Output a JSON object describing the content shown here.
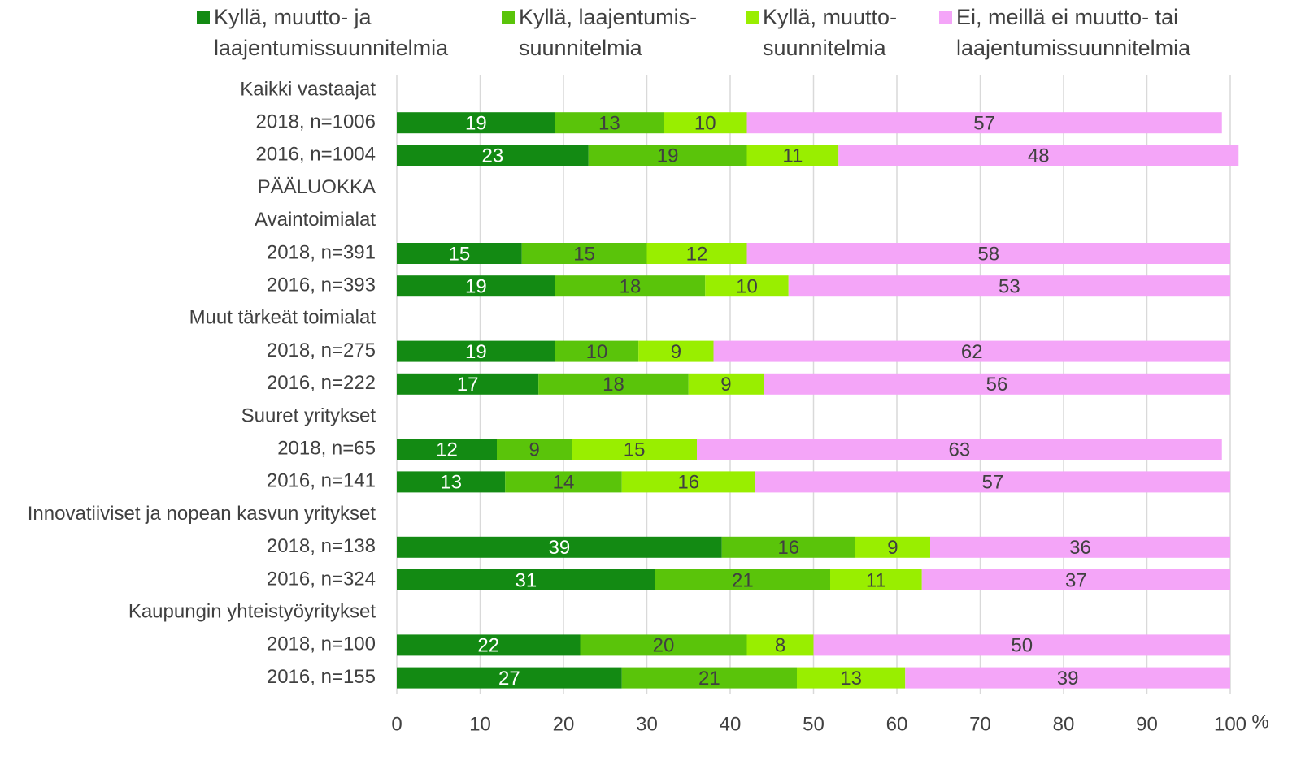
{
  "chart_data": {
    "type": "stacked-barh",
    "categories": [
      "Kaikki vastaajat",
      "2018, n=1006",
      "2016, n=1004",
      "PÄÄLUOKKA",
      "Avaintoimialat",
      "2018, n=391",
      "2016, n=393",
      "Muut tärkeät toimialat",
      "2018, n=275",
      "2016, n=222",
      "Suuret yritykset",
      "2018, n=65",
      "2016, n=141",
      "Innovatiiviset ja nopean kasvun yritykset",
      "2018, n=138",
      "2016, n=324",
      "Kaupungin yhteistyöyritykset",
      "2018, n=100",
      "2016, n=155"
    ],
    "series": [
      {
        "name": "Kyllä, muutto- ja laajentumissuunnitelmia",
        "color": "#138a13",
        "values": [
          null,
          19,
          23,
          null,
          null,
          15,
          19,
          null,
          19,
          17,
          null,
          12,
          13,
          null,
          39,
          31,
          null,
          22,
          27
        ]
      },
      {
        "name": "Kyllä, laajentumis-suunnitelmia",
        "color": "#5ac40a",
        "values": [
          null,
          13,
          19,
          null,
          null,
          15,
          18,
          null,
          10,
          18,
          null,
          9,
          14,
          null,
          16,
          21,
          null,
          20,
          21
        ]
      },
      {
        "name": "Kyllä, muutto-suunnitelmia",
        "color": "#99ee00",
        "values": [
          null,
          10,
          11,
          null,
          null,
          12,
          10,
          null,
          9,
          9,
          null,
          15,
          16,
          null,
          9,
          11,
          null,
          8,
          13
        ]
      },
      {
        "name": "Ei, meillä ei muutto- tai laajentumissuunnitelmia",
        "color": "#f4a5f8",
        "values": [
          null,
          57,
          48,
          null,
          null,
          58,
          53,
          null,
          62,
          56,
          null,
          63,
          57,
          null,
          36,
          37,
          null,
          50,
          39
        ]
      }
    ],
    "xlabel": "%",
    "xlim": [
      0,
      100
    ],
    "xticks": [
      0,
      10,
      20,
      30,
      40,
      50,
      60,
      70,
      80,
      90,
      100
    ],
    "grid": true
  }
}
